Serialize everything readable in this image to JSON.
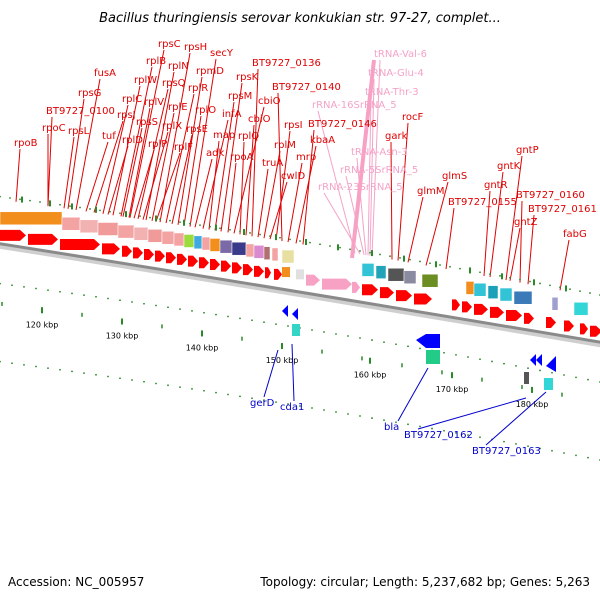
{
  "title": "Bacillus thuringiensis serovar konkukian str. 97-27, complet...",
  "footer": {
    "accession": "Accession: NC_005957",
    "summary": "Topology: circular; Length: 5,237,682 bp; Genes: 5,263"
  },
  "colors": {
    "gene_label": "#e00000",
    "rna_label": "#f4a3c8",
    "reverse_label": "#0000cc",
    "cds_arrow": "#ff0000",
    "rna_arrow": "#f7a1c4",
    "tick": "#2a8a2a",
    "backbone": "#888888"
  },
  "scale_ticks": [
    "120 kbp",
    "130 kbp",
    "140 kbp",
    "150 kbp",
    "160 kbp",
    "170 kbp",
    "180 kbp"
  ],
  "forward_labels": [
    {
      "text": "rpoB",
      "kind": "gene"
    },
    {
      "text": "rpoC",
      "kind": "gene"
    },
    {
      "text": "BT9727_0100",
      "kind": "gene"
    },
    {
      "text": "rpsG",
      "kind": "gene"
    },
    {
      "text": "rpsL",
      "kind": "gene"
    },
    {
      "text": "fusA",
      "kind": "gene"
    },
    {
      "text": "tuf",
      "kind": "gene"
    },
    {
      "text": "rpsJ",
      "kind": "gene"
    },
    {
      "text": "rplC",
      "kind": "gene"
    },
    {
      "text": "rplD",
      "kind": "gene"
    },
    {
      "text": "rplW",
      "kind": "gene"
    },
    {
      "text": "rplB",
      "kind": "gene"
    },
    {
      "text": "rpsS",
      "kind": "gene"
    },
    {
      "text": "rplV",
      "kind": "gene"
    },
    {
      "text": "rpsC",
      "kind": "gene"
    },
    {
      "text": "rplP",
      "kind": "gene"
    },
    {
      "text": "rpsQ",
      "kind": "gene"
    },
    {
      "text": "rplX",
      "kind": "gene"
    },
    {
      "text": "rplN",
      "kind": "gene"
    },
    {
      "text": "rplE",
      "kind": "gene"
    },
    {
      "text": "rplF",
      "kind": "gene"
    },
    {
      "text": "rpsH",
      "kind": "gene"
    },
    {
      "text": "rplR",
      "kind": "gene"
    },
    {
      "text": "rpsE",
      "kind": "gene"
    },
    {
      "text": "rpmD",
      "kind": "gene"
    },
    {
      "text": "rplO",
      "kind": "gene"
    },
    {
      "text": "secY",
      "kind": "gene"
    },
    {
      "text": "adk",
      "kind": "gene"
    },
    {
      "text": "infA",
      "kind": "gene"
    },
    {
      "text": "map",
      "kind": "gene"
    },
    {
      "text": "rpsM",
      "kind": "gene"
    },
    {
      "text": "rpsK",
      "kind": "gene"
    },
    {
      "text": "rpoA",
      "kind": "gene"
    },
    {
      "text": "cbiO",
      "kind": "gene"
    },
    {
      "text": "rplQ",
      "kind": "gene"
    },
    {
      "text": "cbiO",
      "kind": "gene"
    },
    {
      "text": "BT9727_0136",
      "kind": "gene"
    },
    {
      "text": "truA",
      "kind": "gene"
    },
    {
      "text": "rplM",
      "kind": "gene"
    },
    {
      "text": "cwlD",
      "kind": "gene"
    },
    {
      "text": "rpsI",
      "kind": "gene"
    },
    {
      "text": "BT9727_0140",
      "kind": "gene"
    },
    {
      "text": "mrp",
      "kind": "gene"
    },
    {
      "text": "kbaA",
      "kind": "gene"
    },
    {
      "text": "BT9727_0146",
      "kind": "gene"
    },
    {
      "text": "rRNA-16SrRNA_5",
      "kind": "rna"
    },
    {
      "text": "rRNA-23SrRNA_5",
      "kind": "rna"
    },
    {
      "text": "rRNA-5SrRNA_5",
      "kind": "rna"
    },
    {
      "text": "tRNA-Asn-3",
      "kind": "rna"
    },
    {
      "text": "tRNA-Thr-3",
      "kind": "rna"
    },
    {
      "text": "tRNA-Glu-4",
      "kind": "rna"
    },
    {
      "text": "tRNA-Val-6",
      "kind": "rna"
    },
    {
      "text": "gark",
      "kind": "gene"
    },
    {
      "text": "rocF",
      "kind": "gene"
    },
    {
      "text": "glmM",
      "kind": "gene"
    },
    {
      "text": "glmS",
      "kind": "gene"
    },
    {
      "text": "BT9727_0155",
      "kind": "gene"
    },
    {
      "text": "gntR",
      "kind": "gene"
    },
    {
      "text": "gntK",
      "kind": "gene"
    },
    {
      "text": "gntP",
      "kind": "gene"
    },
    {
      "text": "BT9727_0160",
      "kind": "gene"
    },
    {
      "text": "gntZ",
      "kind": "gene"
    },
    {
      "text": "BT9727_0161",
      "kind": "gene"
    },
    {
      "text": "fabG",
      "kind": "gene"
    }
  ],
  "reverse_labels": [
    {
      "text": "gerD"
    },
    {
      "text": "cda1"
    },
    {
      "text": "bla"
    },
    {
      "text": "BT9727_0162"
    },
    {
      "text": "BT9727_0163"
    }
  ]
}
